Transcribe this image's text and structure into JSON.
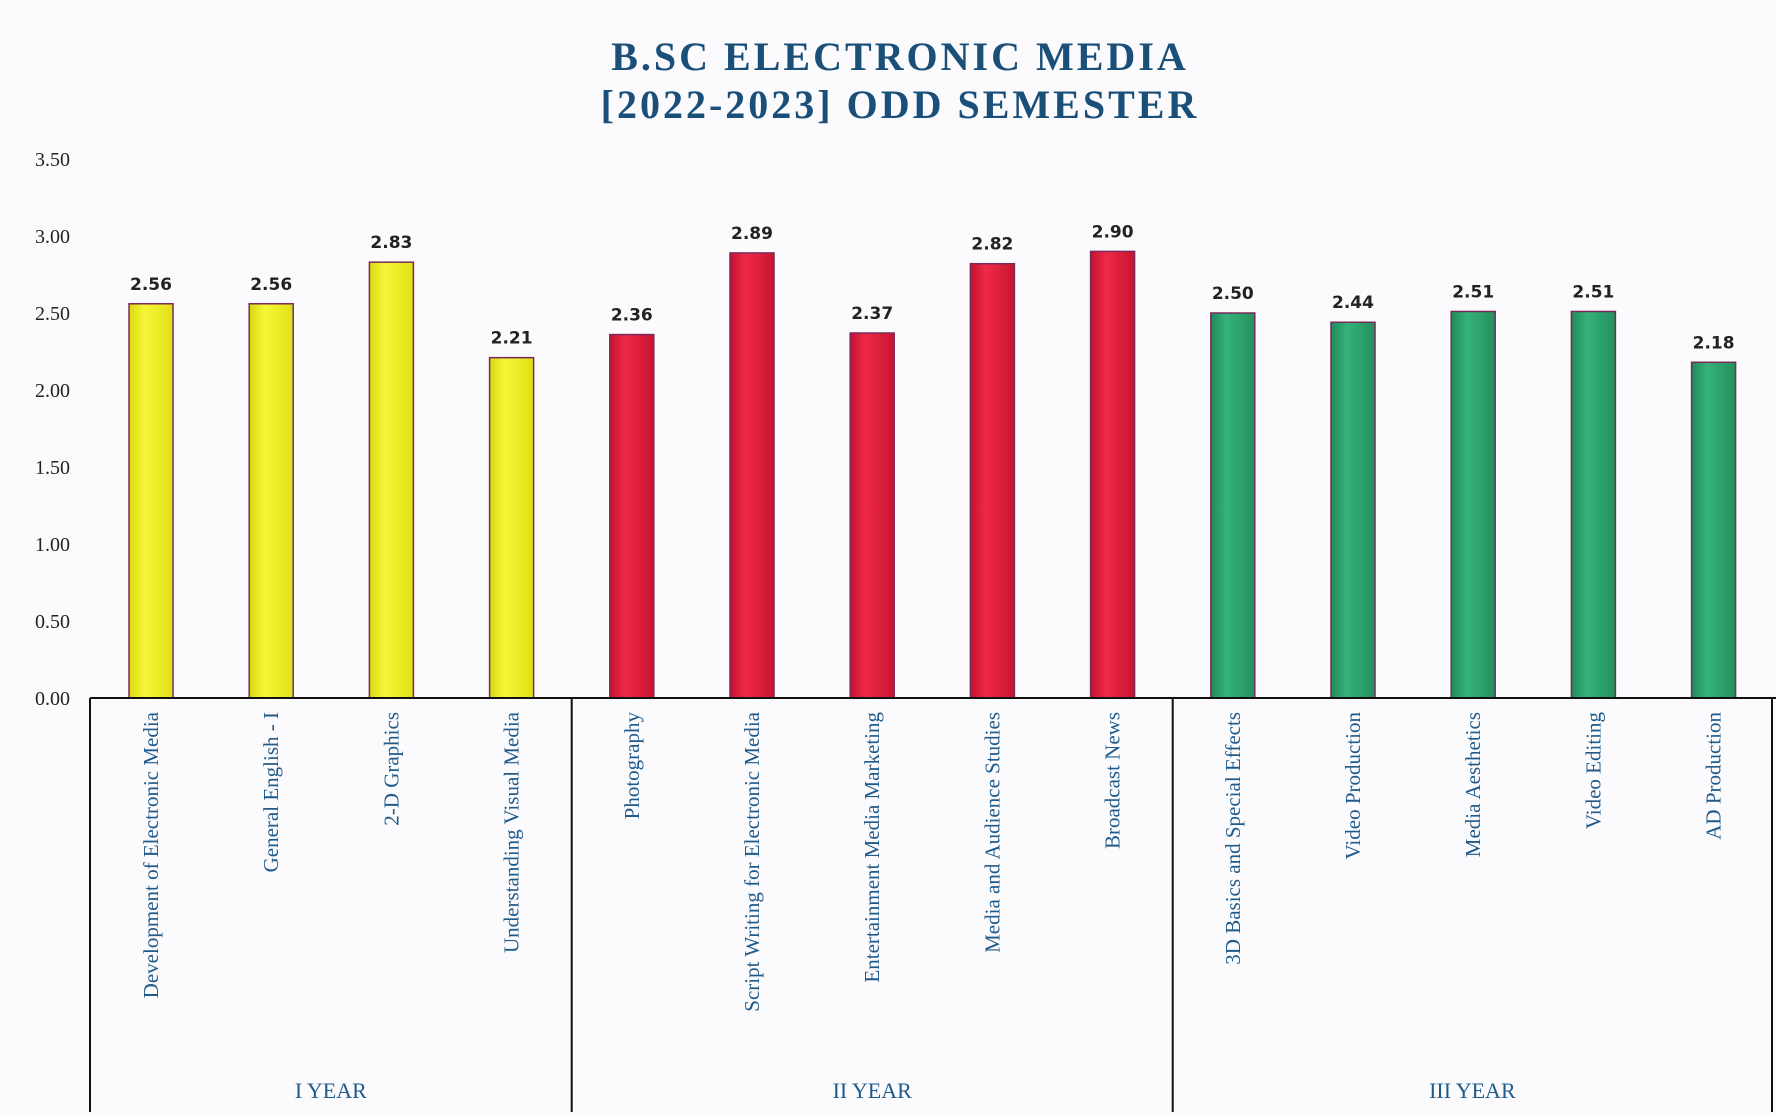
{
  "chart_data": {
    "type": "bar",
    "title_lines": [
      "B.SC ELECTRONIC MEDIA",
      "[2022-2023] ODD SEMESTER"
    ],
    "ylim": [
      0,
      3.5
    ],
    "yticks": [
      "0.00",
      "0.50",
      "1.00",
      "1.50",
      "2.00",
      "2.50",
      "3.00",
      "3.50"
    ],
    "categories": [
      "Development of Electronic Media",
      "General English - I",
      "2-D Graphics",
      "Understanding Visual Media",
      "Photography",
      "Script Writing for Electronic Media",
      "Entertainment Media Marketing",
      "Media and Audience Studies",
      "Broadcast News",
      "3D Basics and Special Effects",
      "Video Production",
      "Media Aesthetics",
      "Video Editing",
      "AD Production"
    ],
    "values": [
      2.56,
      2.56,
      2.83,
      2.21,
      2.36,
      2.89,
      2.37,
      2.82,
      2.9,
      2.5,
      2.44,
      2.51,
      2.51,
      2.18
    ],
    "value_labels": [
      "2.56",
      "2.56",
      "2.83",
      "2.21",
      "2.36",
      "2.89",
      "2.37",
      "2.82",
      "2.90",
      "2.50",
      "2.44",
      "2.51",
      "2.51",
      "2.18"
    ],
    "groups": [
      {
        "label": "I YEAR",
        "start": 0,
        "end": 3,
        "color": "#f2f21c"
      },
      {
        "label": "II YEAR",
        "start": 4,
        "end": 8,
        "color": "#e41e3c"
      },
      {
        "label": "III YEAR",
        "start": 9,
        "end": 13,
        "color": "#2aa06a"
      }
    ],
    "grid": false
  }
}
